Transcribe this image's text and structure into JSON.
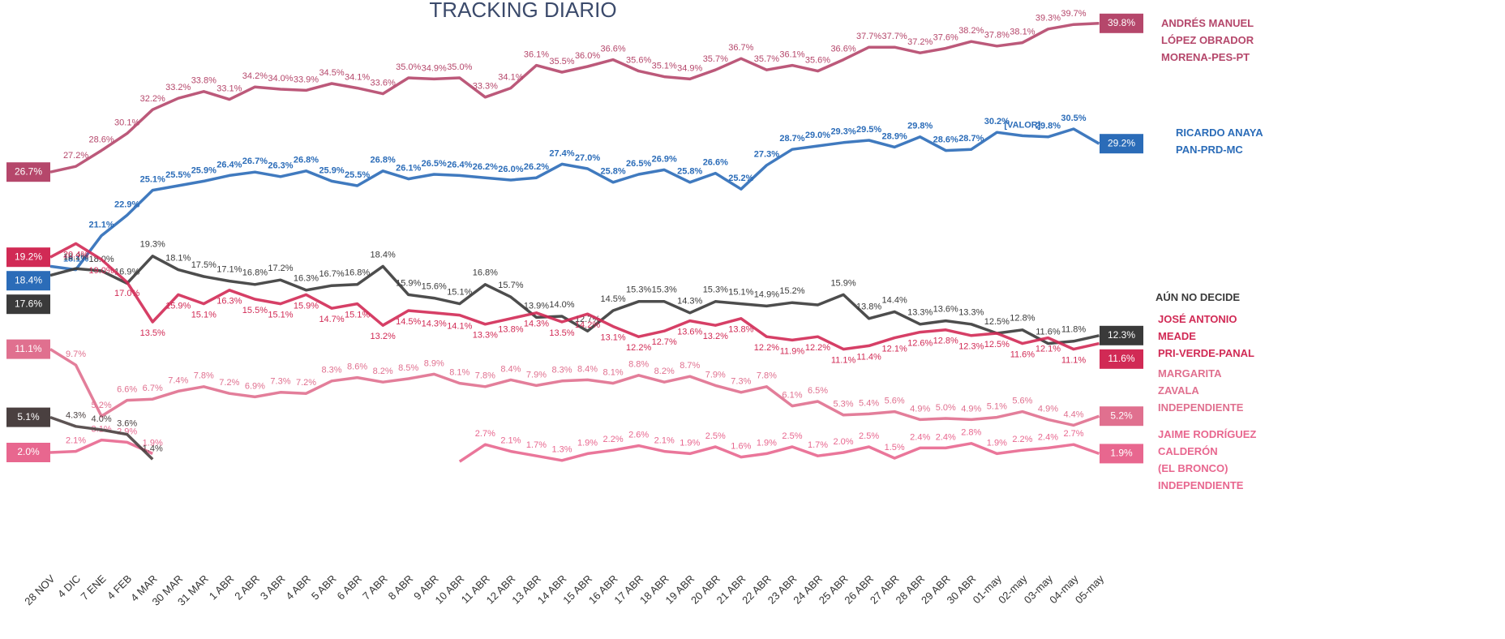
{
  "chart_data": {
    "type": "line",
    "title": "TRACKING DIARIO",
    "categories": [
      "28 NOV",
      "4 DIC",
      "7 ENE",
      "4 FEB",
      "4 MAR",
      "30 MAR",
      "31 MAR",
      "1 ABR",
      "2 ABR",
      "3 ABR",
      "4 ABR",
      "5 ABR",
      "6 ABR",
      "7 ABR",
      "8 ABR",
      "9 ABR",
      "10 ABR",
      "11 ABR",
      "12 ABR",
      "13 ABR",
      "14 ABR",
      "15 ABR",
      "16 ABR",
      "17 ABR",
      "18 ABR",
      "19 ABR",
      "20 ABR",
      "21 ABR",
      "22 ABR",
      "23 ABR",
      "24 ABR",
      "25 ABR",
      "26 ABR",
      "27 ABR",
      "28 ABR",
      "29 ABR",
      "30 ABR",
      "01-may",
      "02-may",
      "03-may",
      "04-may",
      "05-may"
    ],
    "series": [
      {
        "name": "ANDRÉS MANUEL\nLÓPEZ OBRADOR\nMORENA-PES-PT",
        "color": "#b5476b",
        "values": [
          26.7,
          27.2,
          28.6,
          30.1,
          32.2,
          33.2,
          33.8,
          33.1,
          34.2,
          34.0,
          33.9,
          34.5,
          34.1,
          33.6,
          35.0,
          34.9,
          35.0,
          33.3,
          34.1,
          36.1,
          35.5,
          36.0,
          36.6,
          35.6,
          35.1,
          34.9,
          35.7,
          36.7,
          35.7,
          36.1,
          35.6,
          36.6,
          37.7,
          37.7,
          37.2,
          37.6,
          38.2,
          37.8,
          38.1,
          39.3,
          39.7,
          39.8
        ],
        "value_labels": [
          "26.7%",
          "27.2%",
          "28.6%",
          "30.1%",
          "32.2%",
          "33.2%",
          "33.8%",
          "33.1%",
          "34.2%",
          "34.0%",
          "33.9%",
          "34.5%",
          "34.1%",
          "33.6%",
          "35.0%",
          "34.9%",
          "35.0%",
          "33.3%",
          "34.1%",
          "36.1%",
          "35.5%",
          "36.0%",
          "36.6%",
          "35.6%",
          "35.1%",
          "34.9%",
          "35.7%",
          "36.7%",
          "35.7%",
          "36.1%",
          "35.6%",
          "36.6%",
          "37.7%",
          "37.7%",
          "37.2%",
          "37.6%",
          "38.2%",
          "37.8%",
          "38.1%",
          "39.3%",
          "39.7%",
          "39.8%"
        ]
      },
      {
        "name": "RICARDO ANAYA\nPAN-PRD-MC",
        "color": "#2b6cb8",
        "values": [
          18.4,
          18.1,
          21.1,
          22.9,
          25.1,
          25.5,
          25.9,
          26.4,
          26.7,
          26.3,
          26.8,
          25.9,
          25.5,
          26.8,
          26.1,
          26.5,
          26.4,
          26.2,
          26.0,
          26.2,
          27.4,
          27.0,
          25.8,
          26.5,
          26.9,
          25.8,
          26.6,
          25.2,
          27.3,
          28.7,
          29.0,
          29.3,
          29.5,
          28.9,
          29.8,
          28.6,
          28.7,
          30.2,
          29.9,
          29.8,
          30.5,
          29.2
        ],
        "value_labels": [
          "18.4%",
          "18.1%",
          "21.1%",
          "22.9%",
          "25.1%",
          "25.5%",
          "25.9%",
          "26.4%",
          "26.7%",
          "26.3%",
          "26.8%",
          "25.9%",
          "25.5%",
          "26.8%",
          "26.1%",
          "26.5%",
          "26.4%",
          "26.2%",
          "26.0%",
          "26.2%",
          "27.4%",
          "27.0%",
          "25.8%",
          "26.5%",
          "26.9%",
          "25.8%",
          "26.6%",
          "25.2%",
          "27.3%",
          "28.7%",
          "29.0%",
          "29.3%",
          "29.5%",
          "28.9%",
          "29.8%",
          "28.6%",
          "28.7%",
          "30.2%",
          "[VALOR]",
          "29.8%",
          "30.5%",
          "29.2%"
        ]
      },
      {
        "name": "AÚN NO DECIDE",
        "color": "#3a3a3a",
        "values": [
          17.6,
          18.2,
          18.0,
          16.9,
          19.3,
          18.1,
          17.5,
          17.1,
          16.8,
          17.2,
          16.3,
          16.7,
          16.8,
          18.4,
          15.9,
          15.6,
          15.1,
          16.8,
          15.7,
          13.9,
          14.0,
          12.7,
          14.5,
          15.3,
          15.3,
          14.3,
          15.3,
          15.1,
          14.9,
          15.2,
          15.0,
          15.9,
          13.8,
          14.4,
          13.3,
          13.6,
          13.3,
          12.5,
          12.8,
          11.6,
          11.8,
          12.3
        ],
        "value_labels": [
          "17.6%",
          "18.2%",
          "18.0%",
          "16.9%",
          "19.3%",
          "18.1%",
          "17.5%",
          "17.1%",
          "16.8%",
          "17.2%",
          "16.3%",
          "16.7%",
          "16.8%",
          "18.4%",
          "15.9%",
          "15.6%",
          "15.1%",
          "16.8%",
          "15.7%",
          "13.9%",
          "14.0%",
          "12.7%",
          "14.5%",
          "15.3%",
          "15.3%",
          "14.3%",
          "15.3%",
          "15.1%",
          "14.9%",
          "15.2%",
          null,
          "15.9%",
          "13.8%",
          "14.4%",
          "13.3%",
          "13.6%",
          "13.3%",
          "12.5%",
          "12.8%",
          "11.6%",
          "11.8%",
          "12.3%"
        ]
      },
      {
        "name": "JOSÉ ANTONIO\nMEADE\nPRI-VERDE-PANAL",
        "color": "#d12a55",
        "values": [
          19.2,
          20.4,
          19.0,
          17.0,
          13.5,
          15.9,
          15.1,
          16.3,
          15.5,
          15.1,
          15.9,
          14.7,
          15.1,
          13.2,
          14.5,
          14.3,
          14.1,
          13.3,
          13.8,
          14.3,
          13.5,
          14.2,
          13.1,
          12.2,
          12.7,
          13.6,
          13.2,
          13.8,
          12.2,
          11.9,
          12.2,
          11.1,
          11.4,
          12.1,
          12.6,
          12.8,
          12.3,
          12.5,
          11.6,
          12.1,
          11.1,
          11.6
        ],
        "value_labels": [
          "19.2%",
          "20.4%",
          "19.0%",
          "17.0%",
          "13.5%",
          "15.9%",
          "15.1%",
          "16.3%",
          "15.5%",
          "15.1%",
          "15.9%",
          "14.7%",
          "15.1%",
          "13.2%",
          "14.5%",
          "14.3%",
          "14.1%",
          "13.3%",
          "13.8%",
          "14.3%",
          "13.5%",
          "14.2%",
          "13.1%",
          "12.2%",
          "12.7%",
          "13.6%",
          "13.2%",
          "13.8%",
          "12.2%",
          "11.9%",
          "12.2%",
          "11.1%",
          "11.4%",
          "12.1%",
          "12.6%",
          "12.8%",
          "12.3%",
          "12.5%",
          "11.6%",
          "12.1%",
          "11.1%",
          "11.6%"
        ]
      },
      {
        "name": "MARGARITA\nZAVALA\nINDEPENDIENTE",
        "color": "#e0708f",
        "values": [
          11.1,
          9.7,
          5.2,
          6.6,
          6.7,
          7.4,
          7.8,
          7.2,
          6.9,
          7.3,
          7.2,
          8.3,
          8.6,
          8.2,
          8.5,
          8.9,
          8.1,
          7.8,
          8.4,
          7.9,
          8.3,
          8.4,
          8.1,
          8.8,
          8.2,
          8.7,
          7.9,
          7.3,
          7.8,
          6.1,
          6.5,
          5.3,
          5.4,
          5.6,
          4.9,
          5.0,
          4.9,
          5.1,
          5.6,
          4.9,
          4.4,
          5.2
        ],
        "value_labels": [
          "11.1%",
          "9.7%",
          "5.2%",
          "6.6%",
          "6.7%",
          "7.4%",
          "7.8%",
          "7.2%",
          "6.9%",
          "7.3%",
          "7.2%",
          "8.3%",
          "8.6%",
          "8.2%",
          "8.5%",
          "8.9%",
          "8.1%",
          "7.8%",
          "8.4%",
          "7.9%",
          "8.3%",
          "8.4%",
          "8.1%",
          "8.8%",
          "8.2%",
          "8.7%",
          "7.9%",
          "7.3%",
          "7.8%",
          "6.1%",
          "6.5%",
          "5.3%",
          "5.4%",
          "5.6%",
          "4.9%",
          "5.0%",
          "4.9%",
          "5.1%",
          "5.6%",
          "4.9%",
          "4.4%",
          "5.2%"
        ]
      },
      {
        "name": "JAIME RODRÍGUEZ\nCALDERÓN\n(EL BRONCO)\nINDEPENDIENTE",
        "color": "#e8678f",
        "values": [
          2.0,
          2.1,
          3.1,
          2.9,
          1.9,
          null,
          null,
          null,
          null,
          null,
          null,
          null,
          null,
          null,
          null,
          null,
          1.2,
          2.7,
          2.1,
          1.7,
          1.3,
          1.9,
          2.2,
          2.6,
          2.1,
          1.9,
          2.5,
          1.6,
          1.9,
          2.5,
          1.7,
          2.0,
          2.5,
          1.5,
          2.4,
          2.4,
          2.8,
          1.9,
          2.2,
          2.4,
          2.7,
          1.9
        ],
        "value_labels": [
          "2.0%",
          "2.1%",
          "3.1%",
          "2.9%",
          "1.9%",
          null,
          null,
          null,
          null,
          null,
          null,
          null,
          null,
          null,
          null,
          null,
          null,
          "2.7%",
          "2.1%",
          "1.7%",
          "1.3%",
          "1.9%",
          "2.2%",
          "2.6%",
          "2.1%",
          "1.9%",
          "2.5%",
          "1.6%",
          "1.9%",
          "2.5%",
          "1.7%",
          "2.0%",
          "2.5%",
          "1.5%",
          "2.4%",
          "2.4%",
          "2.8%",
          "1.9%",
          "2.2%",
          "2.4%",
          "2.7%",
          "1.9%"
        ]
      },
      {
        "color": "#4a4040",
        "values": [
          5.1,
          4.3,
          4.0,
          3.6,
          1.4,
          null,
          null,
          null,
          null,
          null,
          null,
          null,
          null,
          null,
          null,
          null,
          null,
          null,
          null,
          null,
          null,
          null,
          null,
          null,
          null,
          null,
          null,
          null,
          null,
          null,
          null,
          null,
          null,
          null,
          null,
          null,
          null,
          null,
          null,
          null,
          null,
          null
        ],
        "value_labels": [
          "5.1%",
          "4.3%",
          "4.0%",
          "3.6%",
          "1.4%",
          null,
          null,
          null,
          null,
          null,
          null,
          null,
          null,
          null,
          null,
          null,
          null,
          null,
          null,
          null,
          null,
          null,
          null,
          null,
          null,
          null,
          null,
          null,
          null,
          null,
          null,
          null,
          null,
          null,
          null,
          null,
          null,
          null,
          null,
          null,
          null,
          null
        ]
      }
    ]
  }
}
